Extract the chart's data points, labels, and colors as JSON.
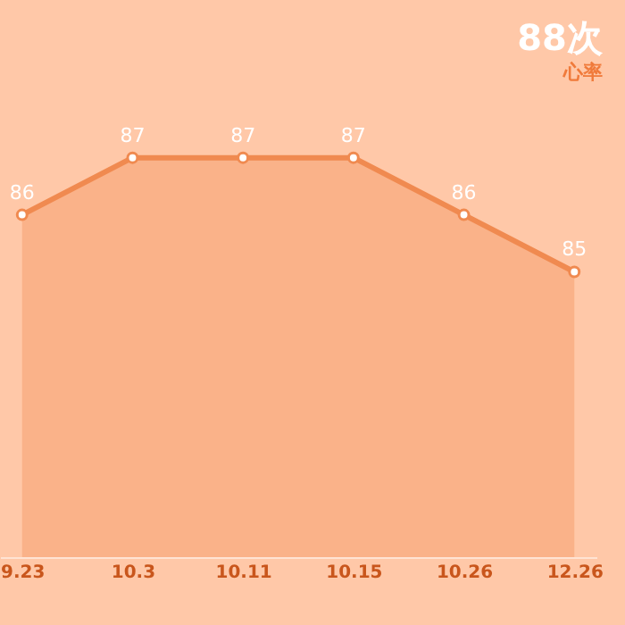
{
  "chart_data": {
    "type": "area",
    "title": "88次",
    "subtitle": "心率",
    "categories": [
      "9.23",
      "10.3",
      "10.11",
      "10.15",
      "10.26",
      "12.26"
    ],
    "series": [
      {
        "color": "#f08a50",
        "values": [
          86,
          87,
          87,
          87,
          86,
          85
        ]
      }
    ],
    "data_labels": true,
    "marker": "circle"
  }
}
